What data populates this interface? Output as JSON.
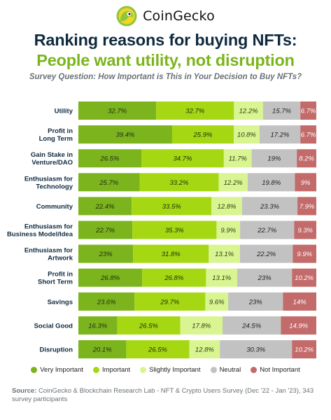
{
  "brand": {
    "name": "CoinGecko",
    "logo_icon": "gecko-logo-icon"
  },
  "title_line1": "Ranking reasons for buying NFTs:",
  "title_line2": "People want utility, not disruption",
  "question": "Survey Question: How Important is This in Your Decision to Buy NFTs?",
  "source_label": "Source:",
  "source_text": "CoinGecko & Blockchain Research Lab - NFT & Crypto Users Survey (Dec '22 - Jan '23), 343 survey participants",
  "chart_data": {
    "type": "bar",
    "orientation": "horizontal",
    "stacked": true,
    "percent_stacked": true,
    "title": "Ranking reasons for buying NFTs: People want utility, not disruption",
    "subtitle": "Survey Question: How Important is This in Your Decision to Buy NFTs?",
    "legend_position": "bottom",
    "grid": false,
    "categories": [
      "Utility",
      "Profit in Long Term",
      "Gain Stake in Venture/DAO",
      "Enthusiasm for Technology",
      "Community",
      "Enthusiasm for Business Model/Idea",
      "Enthusiasm for Artwork",
      "Profit in Short Term",
      "Savings",
      "Social Good",
      "Disruption"
    ],
    "category_lines": [
      [
        "Utility"
      ],
      [
        "Profit in",
        "Long Term"
      ],
      [
        "Gain Stake in",
        "Venture/DAO"
      ],
      [
        "Enthusiasm for",
        "Technology"
      ],
      [
        "Community"
      ],
      [
        "Enthusiasm for",
        "Business Model/Idea"
      ],
      [
        "Enthusiasm for",
        "Artwork"
      ],
      [
        "Profit in",
        "Short Term"
      ],
      [
        "Savings"
      ],
      [
        "Social Good"
      ],
      [
        "Disruption"
      ]
    ],
    "series": [
      {
        "name": "Very Important",
        "color": "#7cb41e",
        "values": [
          32.7,
          39.4,
          26.5,
          25.7,
          22.4,
          22.7,
          23,
          26.8,
          23.6,
          16.3,
          20.1
        ],
        "labels": [
          "32.7%",
          "39.4%",
          "26.5%",
          "25.7%",
          "22.4%",
          "22.7%",
          "23%",
          "26.8%",
          "23.6%",
          "16.3%",
          "20.1%"
        ]
      },
      {
        "name": "Important",
        "color": "#a5d813",
        "values": [
          32.7,
          25.9,
          34.7,
          33.2,
          33.5,
          35.3,
          31.8,
          26.8,
          29.7,
          26.5,
          26.5
        ],
        "labels": [
          "32.7%",
          "25.9%",
          "34.7%",
          "33.2%",
          "33.5%",
          "35.3%",
          "31.8%",
          "26.8%",
          "29.7%",
          "26.5%",
          "26.5%"
        ]
      },
      {
        "name": "Slightly Important",
        "color": "#d9f591",
        "values": [
          12.2,
          10.8,
          11.7,
          12.2,
          12.8,
          9.9,
          13.1,
          13.1,
          9.6,
          17.8,
          12.8
        ],
        "labels": [
          "12.2%",
          "10.8%",
          "11.7%",
          "12.2%",
          "12.8%",
          "9.9%",
          "13.1%",
          "13.1%",
          "9.6%",
          "17.8%",
          "12.8%"
        ]
      },
      {
        "name": "Neutral",
        "color": "#c2c2c2",
        "values": [
          15.7,
          17.2,
          19,
          19.8,
          23.3,
          22.7,
          22.2,
          23,
          23,
          24.5,
          30.3
        ],
        "labels": [
          "15.7%",
          "17.2%",
          "19%",
          "19.8%",
          "23.3%",
          "22.7%",
          "22.2%",
          "23%",
          "23%",
          "24.5%",
          "30.3%"
        ]
      },
      {
        "name": "Not Important",
        "color": "#c36a6a",
        "values": [
          6.7,
          6.7,
          8.2,
          9,
          7.9,
          9.3,
          9.9,
          10.2,
          14,
          14.9,
          10.2
        ],
        "labels": [
          "6.7%",
          "6.7%",
          "8.2%",
          "9%",
          "7.9%",
          "9.3%",
          "9.9%",
          "10.2%",
          "14%",
          "14.9%",
          "10.2%"
        ]
      }
    ]
  }
}
